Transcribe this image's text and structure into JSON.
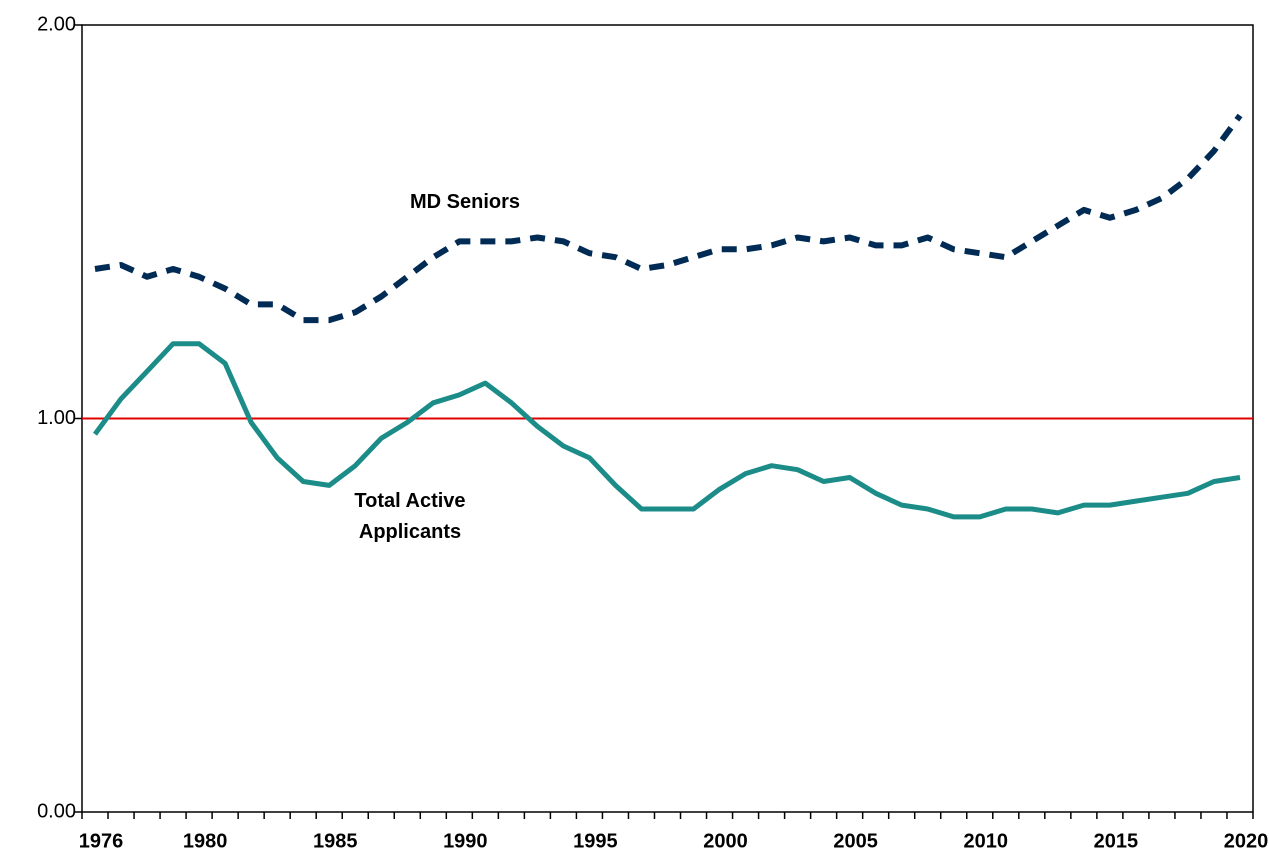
{
  "chart_data": {
    "type": "line",
    "categories": [
      1976,
      null,
      null,
      null,
      1980,
      null,
      null,
      null,
      null,
      1985,
      null,
      null,
      null,
      null,
      1990,
      null,
      null,
      null,
      null,
      1995,
      null,
      null,
      null,
      null,
      2000,
      null,
      null,
      null,
      null,
      2005,
      null,
      null,
      null,
      null,
      2010,
      null,
      null,
      null,
      null,
      2015,
      null,
      null,
      null,
      null,
      2020
    ],
    "series": [
      {
        "name": "MD Seniors",
        "color": "#002b55",
        "dashed": true,
        "values": [
          1.38,
          1.39,
          1.36,
          1.38,
          1.36,
          1.33,
          1.29,
          1.29,
          1.25,
          1.25,
          1.27,
          1.31,
          1.36,
          1.41,
          1.45,
          1.45,
          1.45,
          1.46,
          1.45,
          1.42,
          1.41,
          1.38,
          1.39,
          1.41,
          1.43,
          1.43,
          1.44,
          1.46,
          1.45,
          1.46,
          1.44,
          1.44,
          1.46,
          1.43,
          1.42,
          1.41,
          1.45,
          1.49,
          1.53,
          1.51,
          1.53,
          1.56,
          1.61,
          1.68,
          1.77
        ]
      },
      {
        "name": "Total Active Applicants",
        "color": "#1b8c88",
        "dashed": false,
        "values": [
          0.96,
          1.05,
          1.12,
          1.19,
          1.19,
          1.14,
          0.99,
          0.9,
          0.84,
          0.83,
          0.88,
          0.95,
          0.99,
          1.04,
          1.06,
          1.09,
          1.04,
          0.98,
          0.93,
          0.9,
          0.83,
          0.77,
          0.77,
          0.77,
          0.82,
          0.86,
          0.88,
          0.87,
          0.84,
          0.85,
          0.81,
          0.78,
          0.77,
          0.75,
          0.75,
          0.77,
          0.77,
          0.76,
          0.78,
          0.78,
          0.79,
          0.8,
          0.81,
          0.84,
          0.85
        ]
      }
    ],
    "ylim": [
      0,
      2
    ],
    "yticks": [
      {
        "value": 0,
        "label": "0.00"
      },
      {
        "value": 1,
        "label": "1.00"
      },
      {
        "value": 2,
        "label": "2.00"
      }
    ],
    "reference_line": {
      "value": 1,
      "color": "#e00000"
    },
    "grid": false
  }
}
